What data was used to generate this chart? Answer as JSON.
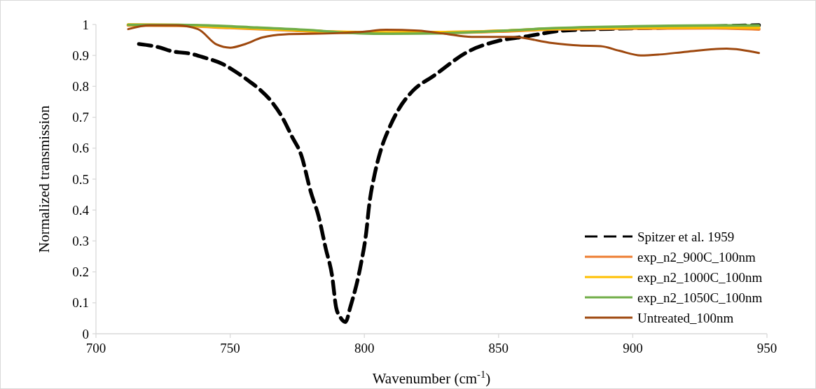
{
  "chart_data": {
    "type": "line",
    "xlabel": "Wavenumber (cm$^{-1}$)",
    "ylabel": "Normalized transmission",
    "xlim": [
      700,
      950
    ],
    "ylim": [
      0,
      1
    ],
    "xticks": [
      700,
      750,
      800,
      850,
      900,
      950
    ],
    "yticks": [
      0,
      0.1,
      0.2,
      0.3,
      0.4,
      0.5,
      0.6,
      0.7,
      0.8,
      0.9,
      1
    ],
    "legend": "bottom right",
    "series": [
      {
        "name": "Spitzer et al. 1959",
        "color": "#000000",
        "line_style": "dashed",
        "x": [
          716,
          724,
          728,
          735.5,
          740,
          747,
          751,
          757,
          761,
          765,
          769,
          773,
          776.5,
          780,
          783,
          785.6,
          788,
          789.5,
          790.8,
          793,
          794.7,
          798.6,
          800.6,
          801.9,
          803.8,
          806.5,
          809,
          813,
          818,
          826,
          839,
          849.5,
          860.7,
          873.8,
          892,
          913,
          947
        ],
        "values": [
          0.937,
          0.925,
          0.914,
          0.905,
          0.894,
          0.873,
          0.853,
          0.817,
          0.79,
          0.755,
          0.706,
          0.638,
          0.577,
          0.46,
          0.378,
          0.276,
          0.186,
          0.084,
          0.057,
          0.038,
          0.084,
          0.22,
          0.321,
          0.423,
          0.514,
          0.604,
          0.66,
          0.729,
          0.785,
          0.835,
          0.914,
          0.946,
          0.962,
          0.98,
          0.986,
          0.99,
          0.998
        ]
      },
      {
        "name": "exp_n2_900C_100nm",
        "color": "#ed7d31",
        "x": [
          712,
          730,
          750,
          770,
          790,
          810,
          830,
          850,
          870,
          900,
          930,
          947
        ],
        "values": [
          0.998,
          0.997,
          0.99,
          0.983,
          0.975,
          0.973,
          0.974,
          0.978,
          0.985,
          0.988,
          0.989,
          0.985
        ]
      },
      {
        "name": "exp_n2_1000C_100nm",
        "color": "#ffc000",
        "x": [
          712,
          730,
          750,
          770,
          790,
          810,
          830,
          850,
          870,
          900,
          930,
          947
        ],
        "values": [
          0.999,
          0.998,
          0.991,
          0.984,
          0.976,
          0.974,
          0.975,
          0.979,
          0.986,
          0.99,
          0.991,
          0.99
        ]
      },
      {
        "name": "exp_n2_1050C_100nm",
        "color": "#70ad47",
        "x": [
          712,
          730,
          742,
          760,
          780,
          794,
          810,
          826,
          840,
          852,
          870,
          900,
          930,
          947
        ],
        "values": [
          0.999,
          0.999,
          0.997,
          0.99,
          0.982,
          0.973,
          0.97,
          0.971,
          0.975,
          0.98,
          0.988,
          0.994,
          0.997,
          0.997
        ]
      },
      {
        "name": "Untreated_100nm",
        "color": "#9e480e",
        "x": [
          712,
          720,
          730,
          738,
          745,
          750,
          755,
          762,
          770,
          790,
          800,
          808,
          820,
          830,
          840,
          850,
          855,
          870,
          880,
          888,
          895,
          903,
          910,
          920,
          935,
          947
        ],
        "values": [
          0.985,
          0.997,
          0.997,
          0.985,
          0.935,
          0.925,
          0.935,
          0.958,
          0.968,
          0.972,
          0.977,
          0.983,
          0.98,
          0.97,
          0.96,
          0.96,
          0.96,
          0.94,
          0.932,
          0.93,
          0.915,
          0.9,
          0.903,
          0.912,
          0.922,
          0.908
        ]
      }
    ]
  }
}
